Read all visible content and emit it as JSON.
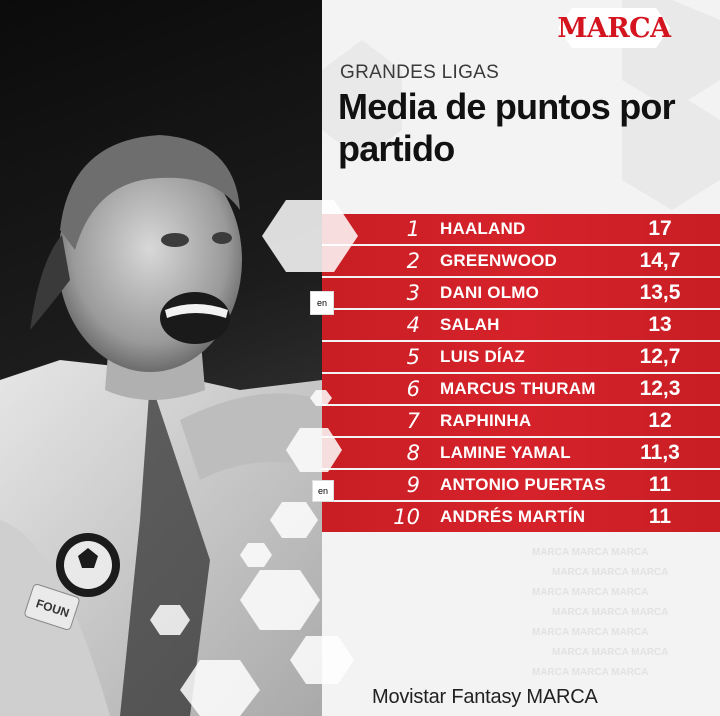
{
  "brand": {
    "logo_text": "MARCA",
    "color": "#d4141f"
  },
  "header": {
    "kicker": "GRANDES LIGAS",
    "title": "Media de puntos por partido"
  },
  "ranking": [
    {
      "rank": "1",
      "name": "HAALAND",
      "points": "17"
    },
    {
      "rank": "2",
      "name": "GREENWOOD",
      "points": "14,7"
    },
    {
      "rank": "3",
      "name": "DANI OLMO",
      "points": "13,5"
    },
    {
      "rank": "4",
      "name": "SALAH",
      "points": "13"
    },
    {
      "rank": "5",
      "name": "LUIS DÍAZ",
      "points": "12,7"
    },
    {
      "rank": "6",
      "name": "MARCUS THURAM",
      "points": "12,3"
    },
    {
      "rank": "7",
      "name": "RAPHINHA",
      "points": "12"
    },
    {
      "rank": "8",
      "name": "LAMINE YAMAL",
      "points": "11,3"
    },
    {
      "rank": "9",
      "name": "ANTONIO PUERTAS",
      "points": "11"
    },
    {
      "rank": "10",
      "name": "ANDRÉS MARTÍN",
      "points": "11"
    }
  ],
  "footer": {
    "source": "Movistar Fantasy MARCA"
  },
  "photo": {
    "subject": "player-photo",
    "badge_text": "UEFA FOUND"
  },
  "overlay": {
    "translate_label": "en"
  },
  "colors": {
    "row_red": "#d6222a",
    "title": "#111111",
    "background": "#f3f3f3"
  }
}
